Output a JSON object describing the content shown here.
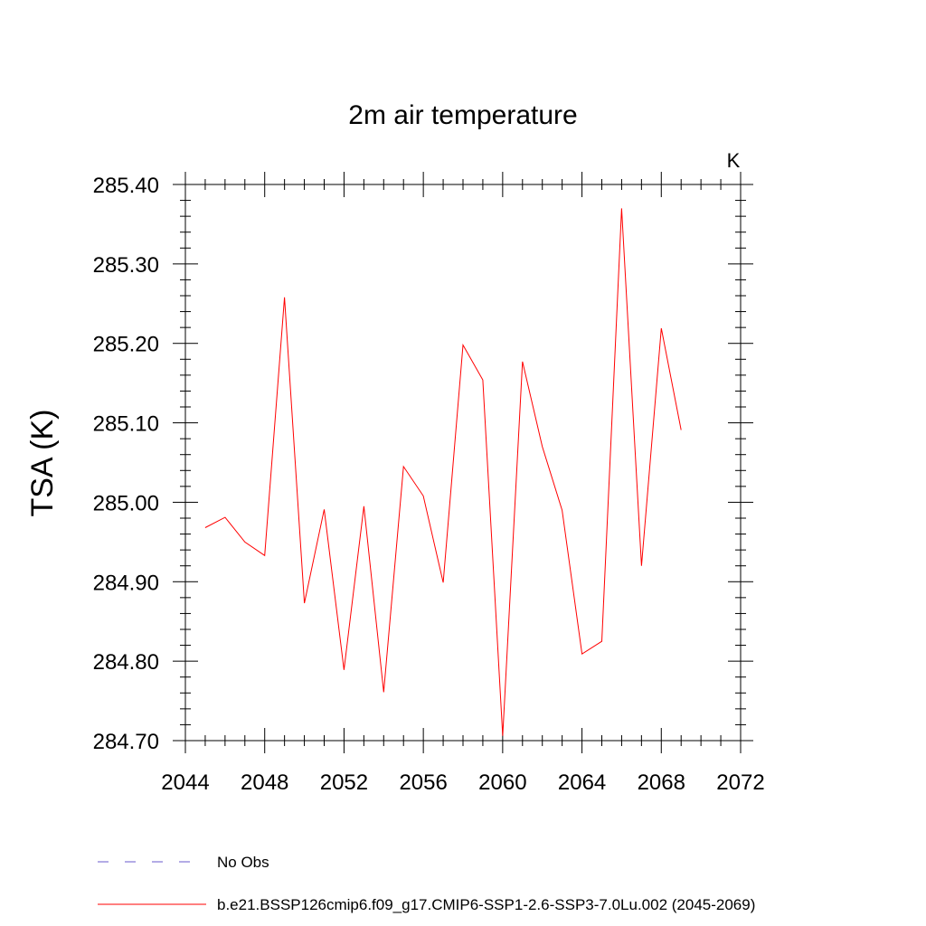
{
  "chart_data": {
    "type": "line",
    "title": "2m air temperature",
    "units_label": "K",
    "ylabel": "TSA  (K)",
    "xlabel": "",
    "xlim": [
      2044,
      2072
    ],
    "ylim": [
      284.7,
      285.4
    ],
    "x_ticks": [
      2044,
      2048,
      2052,
      2056,
      2060,
      2064,
      2068,
      2072
    ],
    "x_tick_labels": [
      "2044",
      "2048",
      "2052",
      "2056",
      "2060",
      "2064",
      "2068",
      "2072"
    ],
    "y_ticks": [
      284.7,
      284.8,
      284.9,
      285.0,
      285.1,
      285.2,
      285.3,
      285.4
    ],
    "y_tick_labels": [
      "284.70",
      "284.80",
      "284.90",
      "285.00",
      "285.10",
      "285.20",
      "285.30",
      "285.40"
    ],
    "grid": false,
    "series": [
      {
        "name": "b.e21.BSSP126cmip6.f09_g17.CMIP6-SSP1-2.6-SSP3-7.0Lu.002 (2045-2069)",
        "color": "#ff0000",
        "x": [
          2045,
          2046,
          2047,
          2048,
          2049,
          2050,
          2051,
          2052,
          2053,
          2054,
          2055,
          2056,
          2057,
          2058,
          2059,
          2060,
          2061,
          2062,
          2063,
          2064,
          2065,
          2066,
          2067,
          2068,
          2069
        ],
        "values": [
          284.968,
          284.981,
          284.95,
          284.933,
          285.258,
          284.873,
          284.991,
          284.789,
          284.995,
          284.761,
          285.045,
          285.008,
          284.899,
          285.198,
          285.154,
          284.706,
          285.177,
          285.07,
          284.99,
          284.809,
          284.825,
          285.37,
          284.92,
          285.219,
          285.091
        ]
      }
    ],
    "legend": [
      {
        "label": "No Obs",
        "style": "dashed",
        "color": "#6a5acd"
      },
      {
        "label": "b.e21.BSSP126cmip6.f09_g17.CMIP6-SSP1-2.6-SSP3-7.0Lu.002 (2045-2069)",
        "style": "solid",
        "color": "#ff0000"
      }
    ],
    "legend_position": "bottom"
  }
}
